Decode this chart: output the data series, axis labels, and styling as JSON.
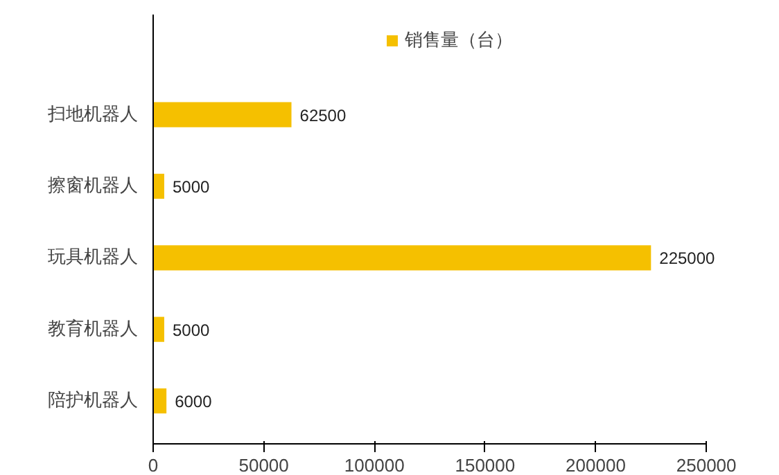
{
  "chart_data": {
    "type": "bar",
    "orientation": "horizontal",
    "categories": [
      "扫地机器人",
      "擦窗机器人",
      "玩具机器人",
      "教育机器人",
      "陪护机器人"
    ],
    "series": [
      {
        "name": "销售量（台）",
        "color": "#f5c000",
        "values": [
          62500,
          5000,
          225000,
          5000,
          6000
        ]
      }
    ],
    "xlim": [
      0,
      250000
    ],
    "xticks": [
      0,
      50000,
      100000,
      150000,
      200000,
      250000
    ],
    "data_labels": true,
    "legend": "top",
    "grid": false
  }
}
